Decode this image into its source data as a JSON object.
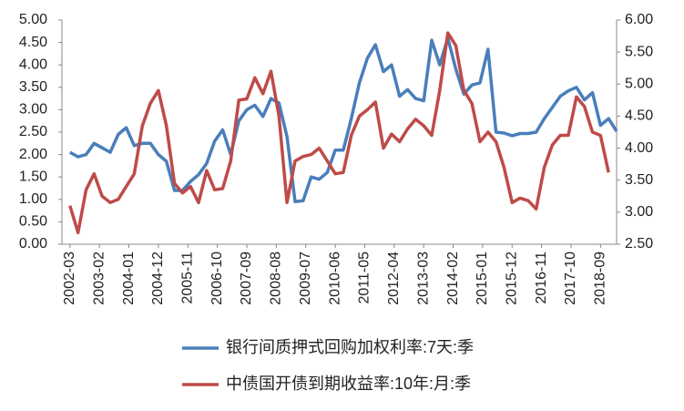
{
  "chart_data": {
    "type": "line",
    "x": [
      "2002-03",
      "2002-06",
      "2002-09",
      "2002-12",
      "2003-03",
      "2003-06",
      "2003-09",
      "2003-12",
      "2004-03",
      "2004-06",
      "2004-09",
      "2004-12",
      "2005-03",
      "2005-06",
      "2005-09",
      "2005-12",
      "2006-03",
      "2006-06",
      "2006-09",
      "2006-12",
      "2007-03",
      "2007-06",
      "2007-09",
      "2007-12",
      "2008-03",
      "2008-06",
      "2008-09",
      "2008-12",
      "2009-03",
      "2009-06",
      "2009-09",
      "2009-12",
      "2010-03",
      "2010-06",
      "2010-09",
      "2010-12",
      "2011-03",
      "2011-06",
      "2011-09",
      "2011-12",
      "2012-03",
      "2012-06",
      "2012-09",
      "2012-12",
      "2013-03",
      "2013-06",
      "2013-09",
      "2013-12",
      "2014-03",
      "2014-06",
      "2014-09",
      "2014-12",
      "2015-03",
      "2015-06",
      "2015-09",
      "2015-12",
      "2016-03",
      "2016-06",
      "2016-09",
      "2016-12",
      "2017-03",
      "2017-06",
      "2017-09",
      "2017-12",
      "2018-03",
      "2018-06",
      "2018-09",
      "2018-12",
      "2019-03"
    ],
    "xlim": [
      "2001-12",
      "2019-03"
    ],
    "xticks": [
      "2002-03",
      "2003-02",
      "2004-01",
      "2004-12",
      "2005-11",
      "2006-10",
      "2007-09",
      "2008-08",
      "2009-07",
      "2010-06",
      "2011-05",
      "2012-04",
      "2013-03",
      "2014-02",
      "2015-01",
      "2015-12",
      "2016-11",
      "2017-10",
      "2018-09"
    ],
    "ylim": [
      0,
      5
    ],
    "yticks": [
      {
        "value": 0,
        "label": "0.00"
      },
      {
        "value": 0.5,
        "label": "0.50"
      },
      {
        "value": 1,
        "label": "1.00"
      },
      {
        "value": 1.5,
        "label": "1.50"
      },
      {
        "value": 2,
        "label": "2.00"
      },
      {
        "value": 2.5,
        "label": "2.50"
      },
      {
        "value": 3,
        "label": "3.00"
      },
      {
        "value": 3.5,
        "label": "3.50"
      },
      {
        "value": 4,
        "label": "4.00"
      },
      {
        "value": 4.5,
        "label": "4.50"
      },
      {
        "value": 5,
        "label": "5.00"
      }
    ],
    "y2lim": [
      2.5,
      6
    ],
    "y2ticks": [
      {
        "value": 2.5,
        "label": "2.50"
      },
      {
        "value": 3,
        "label": "3.00"
      },
      {
        "value": 3.5,
        "label": "3.50"
      },
      {
        "value": 4,
        "label": "4.00"
      },
      {
        "value": 4.5,
        "label": "4.50"
      },
      {
        "value": 5,
        "label": "5.00"
      },
      {
        "value": 5.5,
        "label": "5.50"
      },
      {
        "value": 6,
        "label": "6.00"
      }
    ],
    "grid": false,
    "legend": "bottom",
    "series": [
      {
        "name": "银行间质押式回购加权利率:7天:季",
        "color": "#4a7ebb",
        "axis": "y",
        "values": [
          2.05,
          1.95,
          2.0,
          2.25,
          2.15,
          2.05,
          2.45,
          2.6,
          2.2,
          2.25,
          2.25,
          2.0,
          1.85,
          1.2,
          1.2,
          1.4,
          1.55,
          1.8,
          2.3,
          2.55,
          2.0,
          2.75,
          3.0,
          3.1,
          2.85,
          3.25,
          3.15,
          2.4,
          0.95,
          0.97,
          1.5,
          1.45,
          1.6,
          2.1,
          2.1,
          2.8,
          3.6,
          4.15,
          4.45,
          3.85,
          4.0,
          3.3,
          3.45,
          3.25,
          3.2,
          4.55,
          4.0,
          4.6,
          3.9,
          3.35,
          3.55,
          3.6,
          4.35,
          2.5,
          2.48,
          2.42,
          2.47,
          2.47,
          2.5,
          2.8,
          3.05,
          3.3,
          3.42,
          3.5,
          3.22,
          3.38,
          2.65,
          2.8,
          2.52
        ]
      },
      {
        "name": "中债国开债到期收益率:10年:月:季",
        "color": "#be4b48",
        "axis": "y2",
        "values": [
          3.1,
          2.68,
          3.35,
          3.6,
          3.25,
          3.15,
          3.2,
          3.4,
          3.6,
          4.35,
          4.7,
          4.9,
          4.35,
          3.45,
          3.3,
          3.4,
          3.15,
          3.65,
          3.35,
          3.37,
          3.8,
          4.75,
          4.77,
          5.1,
          4.85,
          5.2,
          4.5,
          3.15,
          3.8,
          3.87,
          3.9,
          4.0,
          3.8,
          3.6,
          3.62,
          4.2,
          4.5,
          4.6,
          4.72,
          4.0,
          4.22,
          4.1,
          4.3,
          4.45,
          4.35,
          4.2,
          4.9,
          5.8,
          5.6,
          4.9,
          4.7,
          4.1,
          4.25,
          4.1,
          3.7,
          3.15,
          3.22,
          3.18,
          3.05,
          3.7,
          4.05,
          4.2,
          4.2,
          4.8,
          4.65,
          4.25,
          4.2,
          3.62,
          null
        ]
      }
    ]
  }
}
